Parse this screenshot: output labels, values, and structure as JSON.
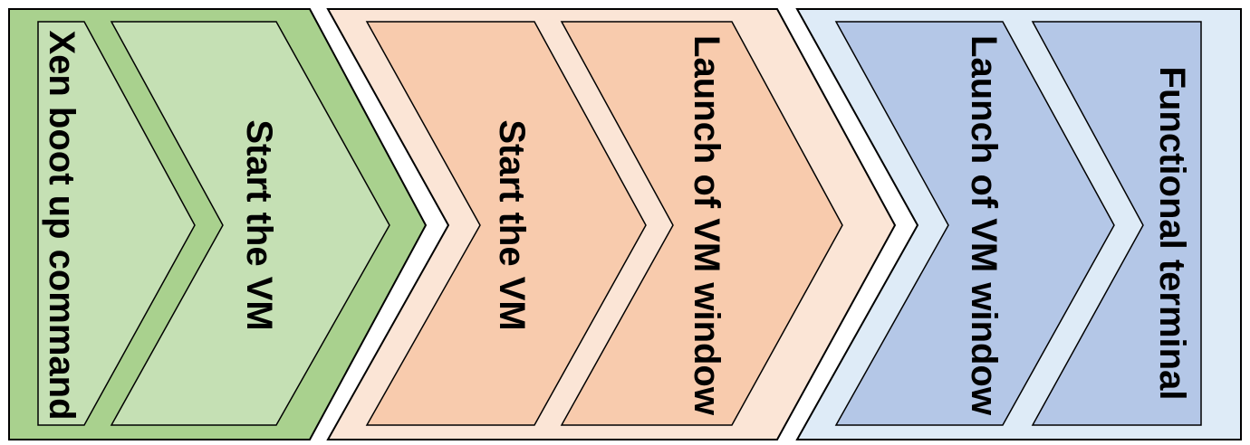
{
  "diagram": {
    "stages": [
      {
        "name": "stage-1",
        "outer_fill": "#A9D18E",
        "inner_fill": "#C5E0B4",
        "steps": [
          {
            "label": "Xen boot up command"
          },
          {
            "label": "Start the VM"
          }
        ]
      },
      {
        "name": "stage-2",
        "outer_fill": "#FBE5D6",
        "inner_fill": "#F8CBAD",
        "steps": [
          {
            "label": "Start the VM"
          },
          {
            "label": "Launch of VM window"
          }
        ]
      },
      {
        "name": "stage-3",
        "outer_fill": "#DEEBF7",
        "inner_fill": "#B4C7E7",
        "steps": [
          {
            "label": "Launch of VM window"
          },
          {
            "label": "Functional terminal"
          }
        ]
      }
    ]
  }
}
